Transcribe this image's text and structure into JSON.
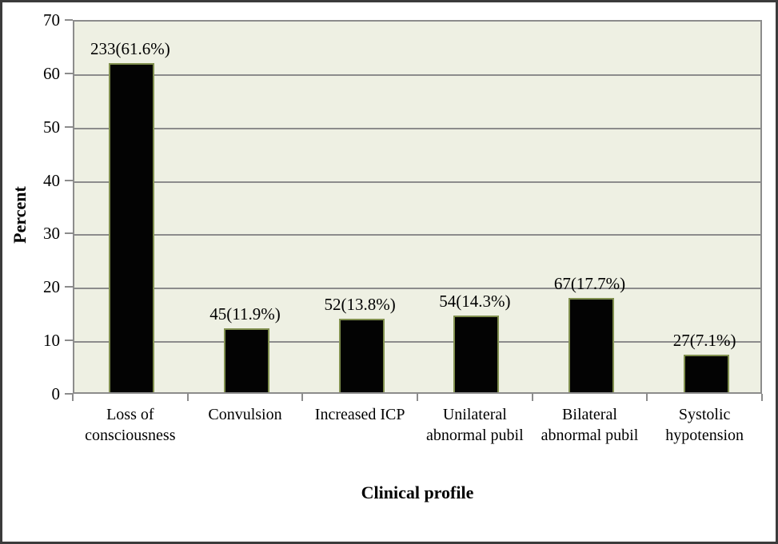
{
  "chart_data": {
    "type": "bar",
    "title": "",
    "xlabel": "Clinical profile",
    "ylabel": "Percent",
    "ylim": [
      0,
      70
    ],
    "ytick_step": 10,
    "yticks": [
      0,
      10,
      20,
      30,
      40,
      50,
      60,
      70
    ],
    "grid": true,
    "legend": "none",
    "categories": [
      "Loss of consciousness",
      "Convulsion",
      "Increased ICP",
      "Unilateral abnormal pubil",
      "Bilateral abnormal pubil",
      "Systolic hypotension"
    ],
    "counts": [
      233,
      45,
      52,
      54,
      67,
      27
    ],
    "values": [
      61.6,
      11.9,
      13.8,
      14.3,
      17.7,
      7.1
    ],
    "bar_labels": [
      "233(61.6%)",
      "45(11.9%)",
      "52(13.8%)",
      "54(14.3%)",
      "67(17.7%)",
      "27(7.1%)"
    ],
    "colors": {
      "plot_bg": "#eef0e3",
      "grid": "#8c8c8c",
      "bar_fill": "#030303",
      "bar_border": "#81904f",
      "axis": "#8c8c8c",
      "text": "#000000",
      "frame": "#3b3b3b",
      "outer_bg": "#ffffff"
    }
  }
}
